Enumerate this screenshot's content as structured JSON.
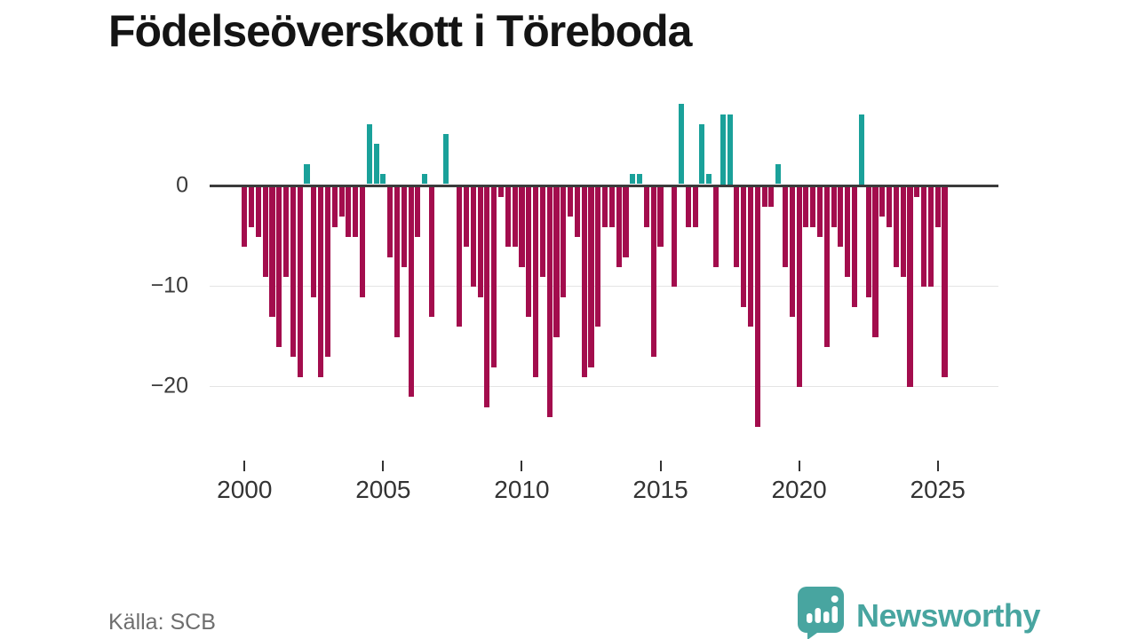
{
  "header": {
    "title": "Födelseöverskott i Töreboda"
  },
  "footer": {
    "source_label": "Källa: SCB",
    "brand": {
      "name": "Newsworthy",
      "icon": "newsworthy-chart-bubble-icon"
    }
  },
  "colors": {
    "positive_bar": "#1aa19a",
    "negative_bar": "#a30d4d",
    "axis": "#3b3b3b",
    "grid": "#e4e4e4",
    "y_label": "#3a3a3a",
    "x_label": "#333333",
    "title_text": "#141414",
    "source_text": "#6e6e6e",
    "brand_teal": "#48a5a0"
  },
  "chart_data": {
    "type": "bar",
    "title": "Födelseöverskott i Töreboda",
    "frequency": "quarterly",
    "start": "2000-Q1",
    "end": "2025-Q2",
    "x_tick_labels": [
      "2000",
      "2005",
      "2010",
      "2015",
      "2020",
      "2025"
    ],
    "x_tick_years": [
      2000,
      2005,
      2010,
      2015,
      2020,
      2025
    ],
    "y_tick_labels": [
      "0",
      "−10",
      "−20"
    ],
    "y_tick_values": [
      0,
      -10,
      -20
    ],
    "y_gridline_values": [
      -10,
      -20
    ],
    "ylim": [
      -26,
      9
    ],
    "grid": "horizontal-only",
    "legend": "none",
    "series": [
      {
        "name": "Födelseöverskott",
        "by_year": [
          {
            "year": 2000,
            "values": [
              -6,
              -4,
              -5,
              -9
            ]
          },
          {
            "year": 2001,
            "values": [
              -13,
              -16,
              -9,
              -17
            ]
          },
          {
            "year": 2002,
            "values": [
              -19,
              2,
              -11,
              -19
            ]
          },
          {
            "year": 2003,
            "values": [
              -17,
              -4,
              -3,
              -5
            ]
          },
          {
            "year": 2004,
            "values": [
              -5,
              -11,
              6,
              4
            ]
          },
          {
            "year": 2005,
            "values": [
              1,
              -7,
              -15,
              -8
            ]
          },
          {
            "year": 2006,
            "values": [
              -21,
              -5,
              1,
              -13
            ]
          },
          {
            "year": 2007,
            "values": [
              0,
              5,
              0,
              -14
            ]
          },
          {
            "year": 2008,
            "values": [
              -6,
              -10,
              -11,
              -22
            ]
          },
          {
            "year": 2009,
            "values": [
              -18,
              -1,
              -6,
              -6
            ]
          },
          {
            "year": 2010,
            "values": [
              -8,
              -13,
              -19,
              -9
            ]
          },
          {
            "year": 2011,
            "values": [
              -23,
              -15,
              -11,
              -3
            ]
          },
          {
            "year": 2012,
            "values": [
              -5,
              -19,
              -18,
              -14
            ]
          },
          {
            "year": 2013,
            "values": [
              -4,
              -4,
              -8,
              -7
            ]
          },
          {
            "year": 2014,
            "values": [
              1,
              1,
              -4,
              -17
            ]
          },
          {
            "year": 2015,
            "values": [
              -6,
              0,
              -10,
              8
            ]
          },
          {
            "year": 2016,
            "values": [
              -4,
              -4,
              6,
              1
            ]
          },
          {
            "year": 2017,
            "values": [
              -8,
              7,
              7,
              -8
            ]
          },
          {
            "year": 2018,
            "values": [
              -12,
              -14,
              -24,
              -2
            ]
          },
          {
            "year": 2019,
            "values": [
              -2,
              2,
              -8,
              -13
            ]
          },
          {
            "year": 2020,
            "values": [
              -20,
              -4,
              -4,
              -5
            ]
          },
          {
            "year": 2021,
            "values": [
              -16,
              -4,
              -6,
              -9
            ]
          },
          {
            "year": 2022,
            "values": [
              -12,
              7,
              -11,
              -15
            ]
          },
          {
            "year": 2023,
            "values": [
              -3,
              -4,
              -8,
              -9
            ]
          },
          {
            "year": 2024,
            "values": [
              -20,
              -1,
              -10,
              -10
            ]
          },
          {
            "year": 2025,
            "values": [
              -4,
              -19
            ]
          }
        ]
      }
    ]
  }
}
